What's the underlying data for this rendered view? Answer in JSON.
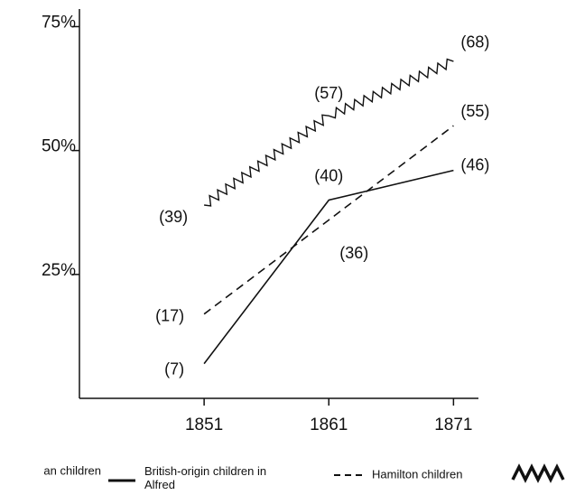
{
  "chart_data": {
    "type": "line",
    "x": [
      1851,
      1861,
      1871
    ],
    "xlim": [
      1841,
      1873
    ],
    "xticks": [
      1851,
      1861,
      1871
    ],
    "ylim": [
      0,
      78
    ],
    "yticks": [
      {
        "value": 25,
        "label": "25%"
      },
      {
        "value": 50,
        "label": "50%"
      },
      {
        "value": 75,
        "label": "75%"
      }
    ],
    "series": [
      {
        "name": "an children",
        "color": "#111111",
        "style": "solid",
        "values": [
          7,
          40,
          46
        ],
        "value_labels": [
          "(7)",
          "(40)",
          "(46)"
        ]
      },
      {
        "name": "British-origin children in Alfred",
        "color": "#111111",
        "style": "dashed",
        "values": [
          17,
          36,
          55
        ],
        "value_labels": [
          "(17)",
          "(36)",
          "(55)"
        ]
      },
      {
        "name": "Hamilton children",
        "color": "#111111",
        "style": "wavy",
        "values": [
          39,
          57,
          68
        ],
        "value_labels": [
          "(39)",
          "(57)",
          "(68)"
        ]
      }
    ]
  }
}
